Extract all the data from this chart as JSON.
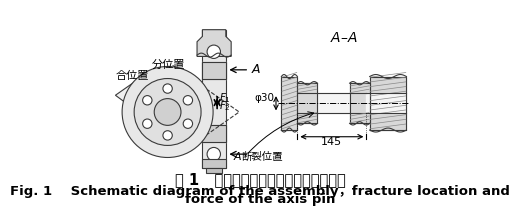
{
  "bg_color": "#ffffff",
  "title_cn": "图 1   轴销装配、断裂位置与受力示意图",
  "title_en_line1": "Fig. 1    Schematic diagram of the assembly，fracture location and",
  "title_en_line2": "force of the axis pin",
  "title_cn_fontsize": 10.5,
  "title_en_fontsize": 9.5,
  "line_color": "#3a3a3a",
  "lw": 0.8
}
